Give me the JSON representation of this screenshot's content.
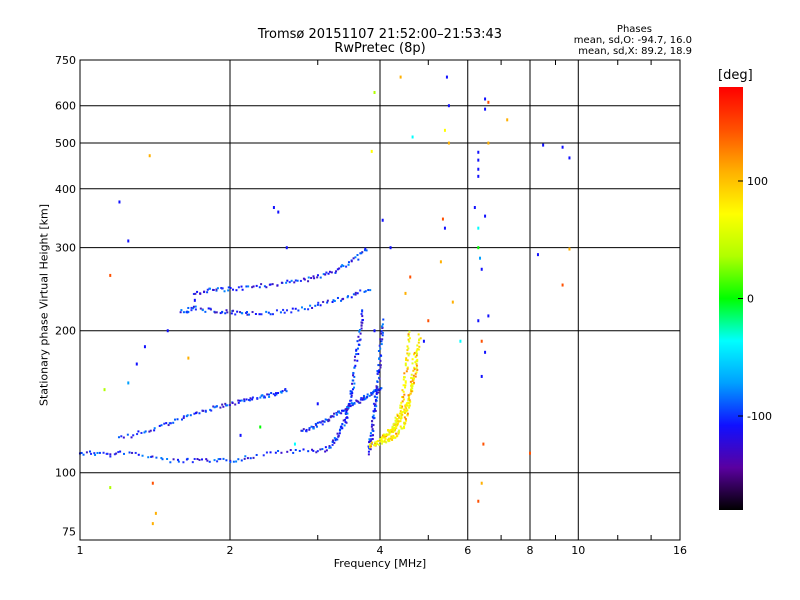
{
  "header": {
    "title": "Tromsø 20151107 21:52:00–21:53:43",
    "subtitle": "RwPretec (8p)",
    "phases_title": "Phases",
    "phases_o": "mean, sd,O:  -94.7, 16.0",
    "phases_x": "mean, sd,X:  89.2, 18.9"
  },
  "colorbar": {
    "title": "[deg]",
    "ticks": [
      {
        "label": "100",
        "value": 100
      },
      {
        "label": "0",
        "value": 0
      },
      {
        "label": "-100",
        "value": -100
      }
    ],
    "range": [
      -180,
      180
    ],
    "colors": [
      "#000000",
      "#5a00a0",
      "#1010ff",
      "#00a0ff",
      "#00ffff",
      "#00ff00",
      "#b0ff00",
      "#ffff00",
      "#ffb000",
      "#ff5000",
      "#ff0000"
    ]
  },
  "chart_data": {
    "type": "scatter",
    "title": "Tromsø 20151107 21:52:00–21:53:43",
    "subtitle": "RwPretec (8p)",
    "xlabel": "Frequency [MHz]",
    "ylabel": "Stationary phase Virtual Height [km]",
    "xscale": "log",
    "yscale": "log",
    "xlim": [
      1,
      16
    ],
    "ylim": [
      72,
      750
    ],
    "xticks": [
      1,
      2,
      4,
      6,
      8,
      10,
      16
    ],
    "xtick_labels": [
      "1",
      "2",
      "4",
      "6",
      "8",
      "10",
      "16"
    ],
    "yticks": [
      75,
      100,
      200,
      300,
      400,
      500,
      600,
      750
    ],
    "ytick_labels": [
      "75",
      "100",
      "200",
      "300",
      "400",
      "500",
      "600",
      "750"
    ],
    "grid": true,
    "color_scale": "phase [deg]",
    "series": [
      {
        "mode": "O",
        "color": "#1030ff",
        "traces": [
          {
            "freq": [
              1.0,
              1.05,
              1.1,
              1.15,
              1.2,
              1.3,
              1.4,
              1.5,
              1.6,
              1.7,
              1.8,
              1.9,
              2.0,
              2.1,
              2.2,
              2.4,
              2.6,
              2.8,
              3.0,
              3.1,
              3.2
            ],
            "height": [
              110,
              110,
              110,
              109,
              110,
              110,
              108,
              106,
              106,
              106,
              106,
              106,
              106,
              107,
              108,
              110,
              111,
              111,
              111,
              112,
              114
            ]
          },
          {
            "freq": [
              3.2,
              3.3,
              3.4,
              3.45,
              3.5,
              3.55,
              3.6,
              3.65,
              3.7
            ],
            "height": [
              115,
              120,
              128,
              135,
              145,
              160,
              180,
              200,
              220
            ]
          },
          {
            "freq": [
              1.2,
              1.4,
              1.6,
              1.8,
              2.0,
              2.2,
              2.4,
              2.6
            ],
            "height": [
              118,
              124,
              130,
              136,
              140,
              143,
              146,
              150
            ]
          },
          {
            "freq": [
              1.6,
              1.65,
              1.7,
              1.8,
              1.9,
              2.0,
              2.1,
              2.2,
              2.4,
              2.6,
              2.8,
              3.0,
              3.2,
              3.4,
              3.6,
              3.8
            ],
            "height": [
              220,
              221,
              223,
              221,
              220,
              219,
              218,
              218,
              218,
              220,
              223,
              227,
              231,
              235,
              240,
              245
            ]
          },
          {
            "freq": [
              1.7,
              1.8,
              1.9,
              2.0,
              2.2,
              2.4,
              2.6,
              2.8,
              3.0,
              3.2,
              3.4,
              3.6,
              3.75
            ],
            "height": [
              240,
              243,
              244,
              245,
              247,
              250,
              253,
              256,
              260,
              266,
              275,
              285,
              298
            ]
          },
          {
            "freq": [
              3.8,
              3.85,
              3.9,
              3.95,
              4.0,
              4.05
            ],
            "height": [
              110,
              120,
              135,
              150,
              175,
              210
            ]
          },
          {
            "freq": [
              2.8,
              3.0,
              3.2,
              3.4,
              3.6,
              3.8,
              4.0
            ],
            "height": [
              122,
              126,
              131,
              136,
              141,
              146,
              152
            ]
          }
        ]
      },
      {
        "mode": "X",
        "color": "#ffff00",
        "traces": [
          {
            "freq": [
              3.8,
              3.9,
              4.0,
              4.1,
              4.2,
              4.3,
              4.4,
              4.5,
              4.55,
              4.6,
              4.65,
              4.7
            ],
            "height": [
              114,
              115,
              116,
              117,
              118,
              120,
              123,
              128,
              135,
              145,
              160,
              180
            ]
          },
          {
            "freq": [
              4.0,
              4.1,
              4.2,
              4.3,
              4.4,
              4.45,
              4.5,
              4.55,
              4.6
            ],
            "height": [
              118,
              120,
              123,
              128,
              135,
              145,
              160,
              178,
              200
            ]
          },
          {
            "freq": [
              4.2,
              4.3,
              4.4,
              4.5,
              4.6,
              4.7,
              4.75,
              4.8
            ],
            "height": [
              122,
              125,
              130,
              137,
              147,
              160,
              175,
              195
            ]
          }
        ]
      }
    ],
    "scatter_points": [
      {
        "freq": 1.2,
        "height": 375,
        "phase": -100
      },
      {
        "freq": 1.25,
        "height": 310,
        "phase": -110
      },
      {
        "freq": 1.15,
        "height": 262,
        "phase": 140
      },
      {
        "freq": 1.38,
        "height": 470,
        "phase": 100
      },
      {
        "freq": 2.45,
        "height": 365,
        "phase": -100
      },
      {
        "freq": 2.5,
        "height": 357,
        "phase": -95
      },
      {
        "freq": 2.6,
        "height": 300,
        "phase": -100
      },
      {
        "freq": 3.85,
        "height": 480,
        "phase": 60
      },
      {
        "freq": 3.9,
        "height": 640,
        "phase": 40
      },
      {
        "freq": 4.05,
        "height": 343,
        "phase": -100
      },
      {
        "freq": 4.4,
        "height": 690,
        "phase": 110
      },
      {
        "freq": 4.65,
        "height": 515,
        "phase": -30
      },
      {
        "freq": 5.45,
        "height": 690,
        "phase": -110
      },
      {
        "freq": 5.5,
        "height": 600,
        "phase": -100
      },
      {
        "freq": 5.4,
        "height": 532,
        "phase": 60
      },
      {
        "freq": 5.5,
        "height": 500,
        "phase": 100
      },
      {
        "freq": 6.3,
        "height": 478,
        "phase": -100
      },
      {
        "freq": 6.3,
        "height": 460,
        "phase": -100
      },
      {
        "freq": 6.3,
        "height": 440,
        "phase": -100
      },
      {
        "freq": 6.3,
        "height": 425,
        "phase": -100
      },
      {
        "freq": 6.5,
        "height": 620,
        "phase": -100
      },
      {
        "freq": 6.5,
        "height": 590,
        "phase": -110
      },
      {
        "freq": 6.6,
        "height": 610,
        "phase": 140
      },
      {
        "freq": 6.6,
        "height": 500,
        "phase": 100
      },
      {
        "freq": 7.2,
        "height": 560,
        "phase": 120
      },
      {
        "freq": 8.5,
        "height": 495,
        "phase": -100
      },
      {
        "freq": 9.3,
        "height": 490,
        "phase": -100
      },
      {
        "freq": 9.6,
        "height": 465,
        "phase": -100
      },
      {
        "freq": 8.3,
        "height": 290,
        "phase": -110
      },
      {
        "freq": 9.3,
        "height": 250,
        "phase": 140
      },
      {
        "freq": 9.6,
        "height": 298,
        "phase": 100
      },
      {
        "freq": 6.2,
        "height": 365,
        "phase": -100
      },
      {
        "freq": 6.3,
        "height": 330,
        "phase": -30
      },
      {
        "freq": 6.3,
        "height": 300,
        "phase": 10
      },
      {
        "freq": 6.35,
        "height": 285,
        "phase": -60
      },
      {
        "freq": 6.4,
        "height": 270,
        "phase": -100
      },
      {
        "freq": 6.5,
        "height": 350,
        "phase": -100
      },
      {
        "freq": 6.3,
        "height": 210,
        "phase": -100
      },
      {
        "freq": 6.6,
        "height": 215,
        "phase": -110
      },
      {
        "freq": 6.4,
        "height": 190,
        "phase": 140
      },
      {
        "freq": 6.5,
        "height": 180,
        "phase": -100
      },
      {
        "freq": 6.4,
        "height": 160,
        "phase": -100
      },
      {
        "freq": 6.45,
        "height": 115,
        "phase": 140
      },
      {
        "freq": 6.4,
        "height": 95,
        "phase": 110
      },
      {
        "freq": 6.3,
        "height": 87,
        "phase": 150
      },
      {
        "freq": 5.35,
        "height": 345,
        "phase": 150
      },
      {
        "freq": 5.4,
        "height": 330,
        "phase": -100
      },
      {
        "freq": 5.6,
        "height": 230,
        "phase": 100
      },
      {
        "freq": 5.8,
        "height": 190,
        "phase": -30
      },
      {
        "freq": 5.3,
        "height": 280,
        "phase": 100
      },
      {
        "freq": 4.6,
        "height": 260,
        "phase": 130
      },
      {
        "freq": 4.5,
        "height": 240,
        "phase": 110
      },
      {
        "freq": 3.9,
        "height": 200,
        "phase": -100
      },
      {
        "freq": 1.65,
        "height": 175,
        "phase": 110
      },
      {
        "freq": 1.35,
        "height": 185,
        "phase": -100
      },
      {
        "freq": 1.3,
        "height": 170,
        "phase": -110
      },
      {
        "freq": 1.25,
        "height": 155,
        "phase": -90
      },
      {
        "freq": 1.12,
        "height": 150,
        "phase": 40
      },
      {
        "freq": 1.15,
        "height": 93,
        "phase": 20
      },
      {
        "freq": 1.4,
        "height": 95,
        "phase": 150
      },
      {
        "freq": 1.4,
        "height": 78,
        "phase": 100
      },
      {
        "freq": 1.42,
        "height": 82,
        "phase": 100
      },
      {
        "freq": 1.5,
        "height": 200,
        "phase": -100
      },
      {
        "freq": 1.7,
        "height": 232,
        "phase": -100
      },
      {
        "freq": 2.1,
        "height": 120,
        "phase": -100
      },
      {
        "freq": 2.3,
        "height": 125,
        "phase": 10
      },
      {
        "freq": 2.7,
        "height": 115,
        "phase": -30
      },
      {
        "freq": 3.0,
        "height": 140,
        "phase": -100
      },
      {
        "freq": 8.0,
        "height": 110,
        "phase": 140
      },
      {
        "freq": 4.9,
        "height": 190,
        "phase": -100
      },
      {
        "freq": 5.0,
        "height": 210,
        "phase": 130
      },
      {
        "freq": 4.2,
        "height": 300,
        "phase": -100
      }
    ]
  }
}
